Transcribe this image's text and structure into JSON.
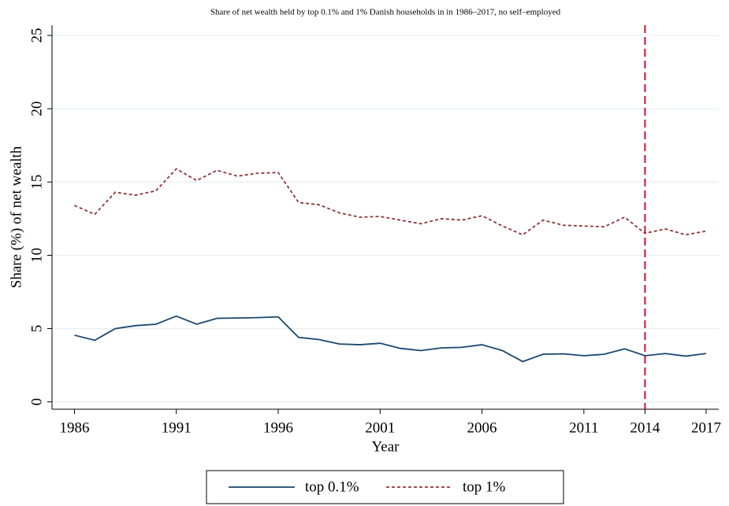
{
  "chart_data": {
    "type": "line",
    "title": "Share of net wealth held by top 0.1% and 1% Danish households in in 1986–2017, no self–employed",
    "x_label": "Year",
    "y_label": "Share (%) of net wealth",
    "x": [
      1986,
      1987,
      1988,
      1989,
      1990,
      1991,
      1992,
      1993,
      1994,
      1995,
      1996,
      1997,
      1998,
      1999,
      2000,
      2001,
      2002,
      2003,
      2004,
      2005,
      2006,
      2007,
      2008,
      2009,
      2010,
      2011,
      2012,
      2013,
      2014,
      2015,
      2016,
      2017
    ],
    "series": [
      {
        "name": "top 0.1%",
        "color": "#1a476f",
        "dash": "solid",
        "values": [
          4.55,
          4.2,
          5.0,
          5.2,
          5.3,
          5.85,
          5.3,
          5.7,
          5.72,
          5.75,
          5.8,
          4.4,
          4.25,
          3.95,
          3.9,
          4.0,
          3.65,
          3.5,
          3.68,
          3.72,
          3.9,
          3.5,
          2.75,
          3.25,
          3.28,
          3.15,
          3.25,
          3.62,
          3.15,
          3.3,
          3.12,
          3.3
        ]
      },
      {
        "name": "top 1%",
        "color": "#90353b",
        "dash": "dashed",
        "values": [
          13.4,
          12.8,
          14.3,
          14.1,
          14.4,
          15.9,
          15.1,
          15.8,
          15.4,
          15.6,
          15.65,
          13.6,
          13.45,
          12.9,
          12.6,
          12.65,
          12.4,
          12.15,
          12.5,
          12.4,
          12.7,
          12.0,
          11.4,
          12.4,
          12.05,
          12.0,
          11.95,
          12.6,
          11.5,
          11.8,
          11.4,
          11.65
        ]
      }
    ],
    "reference_line": {
      "x": 2014,
      "color": "#d0112b"
    },
    "xlim": [
      1984.9,
      2017.62
    ],
    "xticks": [
      1986,
      1991,
      1996,
      2001,
      2006,
      2011,
      2014,
      2017
    ],
    "ylim": [
      -0.5,
      25.7
    ],
    "yticks": [
      0,
      5,
      10,
      15,
      20,
      25
    ],
    "grid": true,
    "legend": "bottom"
  }
}
